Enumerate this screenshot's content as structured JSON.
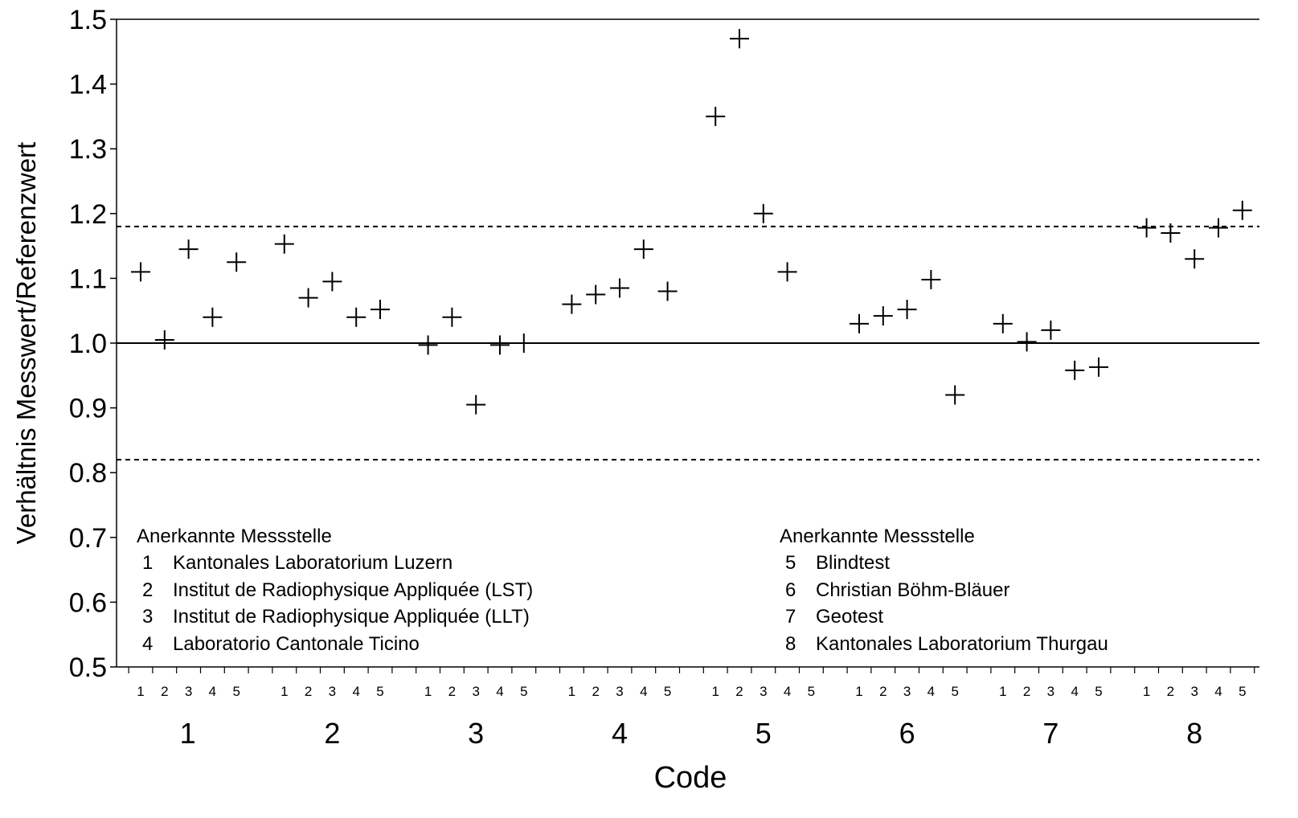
{
  "chart_data": {
    "type": "scatter",
    "title": "",
    "xlabel": "Code",
    "ylabel": "Verhältnis Messwert/Referenzwert",
    "ylim": [
      0.5,
      1.5
    ],
    "yticks": [
      "0.5",
      "0.6",
      "0.7",
      "0.8",
      "0.9",
      "1.0",
      "1.1",
      "1.2",
      "1.3",
      "1.4",
      "1.5"
    ],
    "grid": false,
    "marker": "plus",
    "reference_line": 1.0,
    "limit_lines": [
      0.82,
      1.18
    ],
    "groups": [
      "1",
      "2",
      "3",
      "4",
      "5",
      "6",
      "7",
      "8"
    ],
    "subcategories": [
      "1",
      "2",
      "3",
      "4",
      "5"
    ],
    "values": [
      [
        1.11,
        1.005,
        1.145,
        1.04,
        1.125
      ],
      [
        1.153,
        1.07,
        1.095,
        1.04,
        1.052
      ],
      [
        0.997,
        1.04,
        0.905,
        0.997,
        1.0
      ],
      [
        1.06,
        1.075,
        1.085,
        1.145,
        1.08
      ],
      [
        1.35,
        1.47,
        1.2,
        1.11,
        null
      ],
      [
        1.03,
        1.042,
        1.052,
        1.098,
        0.92
      ],
      [
        1.03,
        1.002,
        1.02,
        0.958,
        0.963
      ],
      [
        1.178,
        1.17,
        1.13,
        1.178,
        1.205
      ]
    ],
    "legend": {
      "left": {
        "header": "Anerkannte  Messstelle",
        "items": [
          {
            "code": "1",
            "name": "Kantonales Laboratorium Luzern"
          },
          {
            "code": "2",
            "name": "Institut de Radiophysique Appliquée (LST)"
          },
          {
            "code": "3",
            "name": "Institut de Radiophysique Appliquée (LLT)"
          },
          {
            "code": "4",
            "name": "Laboratorio Cantonale Ticino"
          }
        ]
      },
      "right": {
        "header": "Anerkannte  Messstelle",
        "items": [
          {
            "code": "5",
            "name": "Blindtest"
          },
          {
            "code": "6",
            "name": "Christian Böhm-Bläuer"
          },
          {
            "code": "7",
            "name": "Geotest"
          },
          {
            "code": "8",
            "name": "Kantonales Laboratorium Thurgau"
          }
        ]
      }
    }
  }
}
